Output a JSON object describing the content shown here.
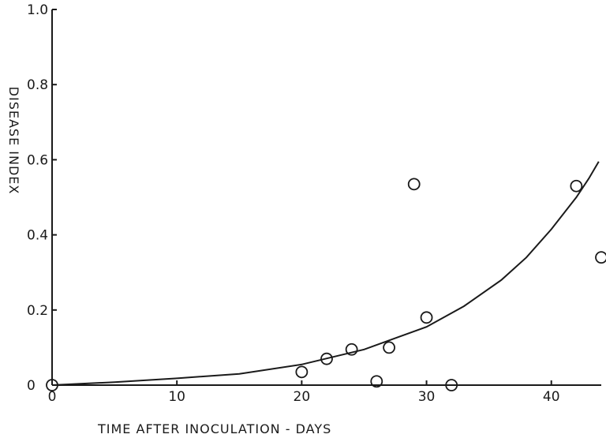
{
  "chart_data": {
    "type": "scatter",
    "xlabel": "TIME AFTER INOCULATION - DAYS",
    "ylabel": "DISEASE INDEX",
    "xlim": [
      0,
      44
    ],
    "ylim": [
      0,
      1.0
    ],
    "x_ticks": [
      0,
      10,
      20,
      30,
      40
    ],
    "x_tick_labels": [
      "0",
      "10",
      "20",
      "30",
      "40"
    ],
    "y_ticks": [
      0,
      0.2,
      0.4,
      0.6,
      0.8,
      1.0
    ],
    "y_tick_labels": [
      "0",
      "0.2",
      "0.4",
      "0.6",
      "0.8",
      "1.0"
    ],
    "grid": false,
    "series": [
      {
        "type": "scatter",
        "marker": "open-circle",
        "points": [
          {
            "x": 0,
            "y": 0.0
          },
          {
            "x": 20,
            "y": 0.035
          },
          {
            "x": 22,
            "y": 0.07
          },
          {
            "x": 24,
            "y": 0.095
          },
          {
            "x": 26,
            "y": 0.01
          },
          {
            "x": 27,
            "y": 0.1
          },
          {
            "x": 29,
            "y": 0.535
          },
          {
            "x": 30,
            "y": 0.18
          },
          {
            "x": 32,
            "y": 0.0
          },
          {
            "x": 42,
            "y": 0.53
          },
          {
            "x": 44,
            "y": 0.34
          }
        ]
      },
      {
        "type": "line",
        "style": "smooth-fitted-curve",
        "points": [
          {
            "x": 0,
            "y": 0.0
          },
          {
            "x": 5,
            "y": 0.008
          },
          {
            "x": 10,
            "y": 0.018
          },
          {
            "x": 15,
            "y": 0.03
          },
          {
            "x": 20,
            "y": 0.055
          },
          {
            "x": 25,
            "y": 0.095
          },
          {
            "x": 30,
            "y": 0.155
          },
          {
            "x": 33,
            "y": 0.21
          },
          {
            "x": 36,
            "y": 0.28
          },
          {
            "x": 38,
            "y": 0.34
          },
          {
            "x": 40,
            "y": 0.415
          },
          {
            "x": 42,
            "y": 0.5
          },
          {
            "x": 43,
            "y": 0.55
          },
          {
            "x": 43.8,
            "y": 0.595
          }
        ]
      }
    ]
  }
}
